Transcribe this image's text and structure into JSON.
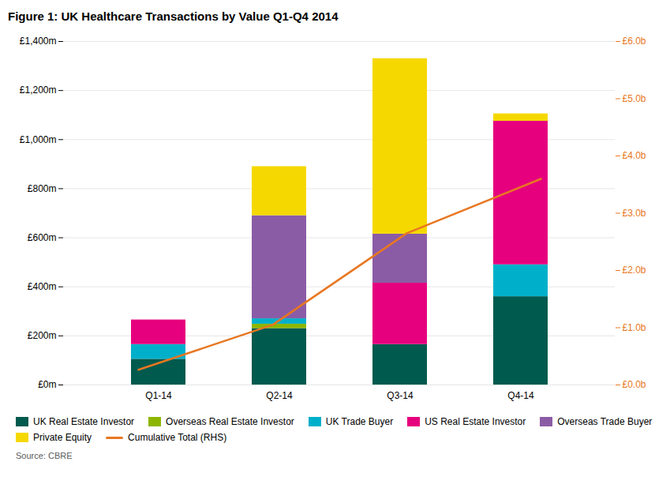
{
  "chart_data": {
    "type": "bar",
    "stacked": true,
    "title": "Figure 1: UK Healthcare Transactions by Value Q1-Q4 2014",
    "source": "Source: CBRE",
    "categories": [
      "Q1-14",
      "Q2-14",
      "Q3-14",
      "Q4-14"
    ],
    "series": [
      {
        "name": "UK Real Estate Investor",
        "color": "#005a4e",
        "values": [
          105,
          230,
          165,
          360
        ]
      },
      {
        "name": "Overseas Real Estate Investor",
        "color": "#8db600",
        "values": [
          0,
          18,
          0,
          0
        ]
      },
      {
        "name": "UK Trade Buyer",
        "color": "#00b0ca",
        "values": [
          60,
          22,
          0,
          130
        ]
      },
      {
        "name": "US Real Estate Investor",
        "color": "#e6007e",
        "values": [
          100,
          0,
          250,
          585
        ]
      },
      {
        "name": "Overseas Trade Buyer",
        "color": "#8b5ca6",
        "values": [
          0,
          420,
          200,
          0
        ]
      },
      {
        "name": "Private Equity",
        "color": "#f5d800",
        "values": [
          0,
          200,
          715,
          30
        ]
      },
      {
        "name": "Cumulative Total (RHS)",
        "type": "line",
        "axis": "y2",
        "color": "#e87722",
        "values": [
          0.265,
          1.05,
          2.65,
          3.6
        ]
      }
    ],
    "ylim": [
      0,
      1400
    ],
    "yticks": [
      {
        "value": 0,
        "label": "£0m"
      },
      {
        "value": 200,
        "label": "£200m"
      },
      {
        "value": 400,
        "label": "£400m"
      },
      {
        "value": 600,
        "label": "£600m"
      },
      {
        "value": 800,
        "label": "£800m"
      },
      {
        "value": 1000,
        "label": "£1,000m"
      },
      {
        "value": 1200,
        "label": "£1,200m"
      },
      {
        "value": 1400,
        "label": "£1,400m"
      }
    ],
    "y2lim": [
      0,
      6.0
    ],
    "y2ticks": [
      {
        "value": 0.0,
        "label": "£0.0b"
      },
      {
        "value": 1.0,
        "label": "£1.0b"
      },
      {
        "value": 2.0,
        "label": "£2.0b"
      },
      {
        "value": 3.0,
        "label": "£3.0b"
      },
      {
        "value": 4.0,
        "label": "£4.0b"
      },
      {
        "value": 5.0,
        "label": "£5.0b"
      },
      {
        "value": 6.0,
        "label": "£6.0b"
      }
    ],
    "grid": true,
    "legend": "bottom"
  }
}
